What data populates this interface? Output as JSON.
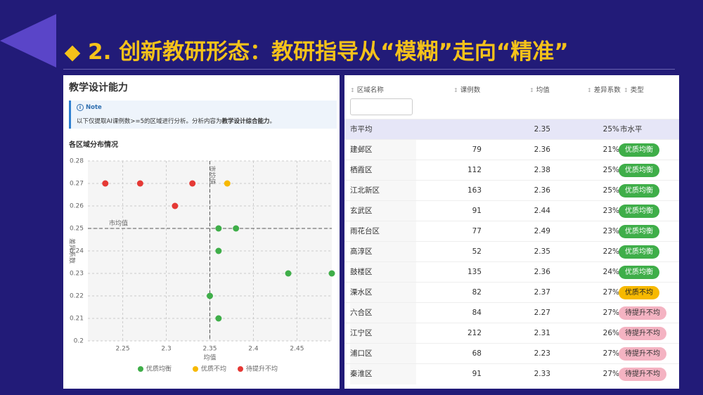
{
  "header": {
    "title": "2. 创新教研形态：教研指导从“模糊”走向“精准”"
  },
  "panel": {
    "title": "教学设计能力",
    "note_label": "Note",
    "note_text": "以下仅提取AI课例数>=5的区域进行分析。分析内容为",
    "note_bold": "教学设计综合能力",
    "note_end": "。",
    "subtitle": "各区域分布情况"
  },
  "chart_data": {
    "type": "scatter",
    "x_label": "均值",
    "y_label": "差异系数",
    "xlim": [
      2.21,
      2.49
    ],
    "xticks": [
      2.25,
      2.3,
      2.35,
      2.4,
      2.45
    ],
    "ylim": [
      0.2,
      0.28
    ],
    "yticks": [
      0.2,
      0.21,
      0.22,
      0.23,
      0.24,
      0.25,
      0.26,
      0.27,
      0.28
    ],
    "grid": true,
    "legend": "bottom",
    "reference_lines": [
      {
        "axis": "x",
        "value": 2.35,
        "label": "市均值"
      },
      {
        "axis": "y",
        "value": 0.25,
        "label": "市均值"
      }
    ],
    "series": [
      {
        "name": "优质均衡",
        "color": "#3fae49",
        "x": [
          2.36,
          2.38,
          2.36,
          2.44,
          2.49,
          2.35,
          2.36
        ],
        "values": [
          0.21,
          0.25,
          0.25,
          0.23,
          0.23,
          0.22,
          0.24
        ]
      },
      {
        "name": "优质不均",
        "color": "#f7b900",
        "x": [
          2.37
        ],
        "values": [
          0.27
        ]
      },
      {
        "name": "待提升不均",
        "color": "#e53935",
        "x": [
          2.27,
          2.31,
          2.23,
          2.33
        ],
        "values": [
          0.27,
          0.26,
          0.27,
          0.27
        ]
      }
    ]
  },
  "table": {
    "columns": [
      "区域名称",
      "课例数",
      "均值",
      "差异系数",
      "类型"
    ],
    "rows": [
      [
        "市平均",
        null,
        "2.35",
        "25%",
        "市水平"
      ],
      [
        "建邺区",
        "79",
        "2.36",
        "21%",
        "优质均衡"
      ],
      [
        "栖霞区",
        "112",
        "2.38",
        "25%",
        "优质均衡"
      ],
      [
        "江北新区",
        "163",
        "2.36",
        "25%",
        "优质均衡"
      ],
      [
        "玄武区",
        "91",
        "2.44",
        "23%",
        "优质均衡"
      ],
      [
        "雨花台区",
        "77",
        "2.49",
        "23%",
        "优质均衡"
      ],
      [
        "高淳区",
        "52",
        "2.35",
        "22%",
        "优质均衡"
      ],
      [
        "鼓楼区",
        "135",
        "2.36",
        "24%",
        "优质均衡"
      ],
      [
        "溧水区",
        "82",
        "2.37",
        "27%",
        "优质不均"
      ],
      [
        "六合区",
        "84",
        "2.27",
        "27%",
        "待提升不均"
      ],
      [
        "江宁区",
        "212",
        "2.31",
        "26%",
        "待提升不均"
      ],
      [
        "浦口区",
        "68",
        "2.23",
        "27%",
        "待提升不均"
      ],
      [
        "秦淮区",
        "91",
        "2.33",
        "27%",
        "待提升不均"
      ]
    ]
  }
}
